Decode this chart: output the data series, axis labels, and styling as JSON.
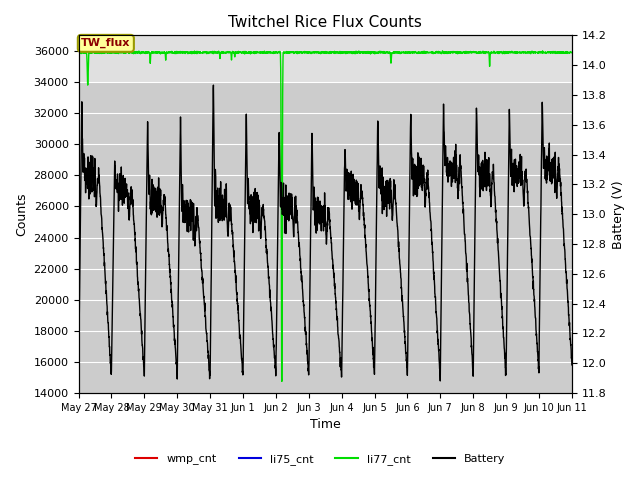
{
  "title": "Twitchel Rice Flux Counts",
  "xlabel": "Time",
  "ylabel_left": "Counts",
  "ylabel_right": "Battery (V)",
  "ylim_left": [
    14000,
    37000
  ],
  "ylim_right": [
    11.8,
    14.2
  ],
  "yticks_left": [
    14000,
    16000,
    18000,
    20000,
    22000,
    24000,
    26000,
    28000,
    30000,
    32000,
    34000,
    36000
  ],
  "yticks_right": [
    11.8,
    12.0,
    12.2,
    12.4,
    12.6,
    12.8,
    13.0,
    13.2,
    13.4,
    13.6,
    13.8,
    14.0,
    14.2
  ],
  "background_color": "#ffffff",
  "plot_bg_color": "#e0e0e0",
  "shaded_band_low": 14000,
  "shaded_band_high": 34000,
  "shaded_color": "#cccccc",
  "tick_labels": [
    "May 27",
    "May 28",
    "May 29",
    "May 30",
    "May 31",
    "Jun 1",
    "Jun 2",
    "Jun 3",
    "Jun 4",
    "Jun 5",
    "Jun 6",
    "Jun 7",
    "Jun 8",
    "Jun 9",
    "Jun 10",
    "Jun 11"
  ],
  "legend_labels": [
    "wmp_cnt",
    "li75_cnt",
    "li77_cnt",
    "Battery"
  ],
  "legend_colors": [
    "#dd0000",
    "#0000dd",
    "#00dd00",
    "#000000"
  ],
  "annotation_label": "TW_flux",
  "annotation_fg": "#8b0000",
  "annotation_bg": "#ffff99",
  "annotation_edge": "#999900"
}
